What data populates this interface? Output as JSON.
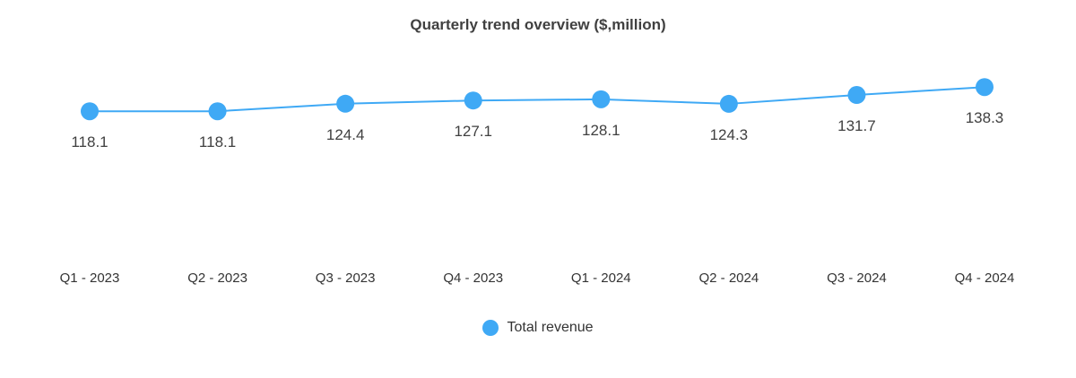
{
  "title": "Quarterly trend overview ($,million)",
  "legend": {
    "label": "Total revenue"
  },
  "colors": {
    "accent": "#3FA9F5",
    "value_label": "#404040",
    "axis_label": "#333333"
  },
  "chart_data": {
    "type": "line",
    "title": "Quarterly trend overview ($,million)",
    "categories": [
      "Q1 - 2023",
      "Q2 - 2023",
      "Q3 - 2023",
      "Q4 - 2023",
      "Q1 - 2024",
      "Q2 - 2024",
      "Q3 - 2024",
      "Q4 - 2024"
    ],
    "series": [
      {
        "name": "Total revenue",
        "values": [
          118.1,
          118.1,
          124.4,
          127.1,
          128.1,
          124.3,
          131.7,
          138.3
        ]
      }
    ],
    "data_labels": true,
    "grid": false,
    "xlabel": "",
    "ylabel": "",
    "ylim": [
      0,
      160
    ],
    "legend_position": "bottom"
  }
}
